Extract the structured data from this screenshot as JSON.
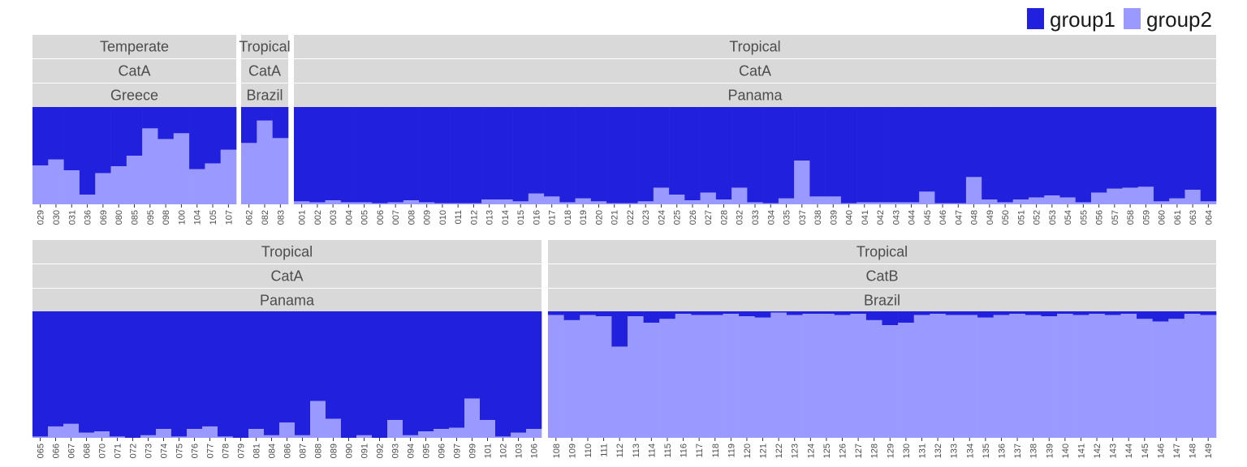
{
  "chart_data": {
    "type": "bar",
    "stacked": "proportional",
    "colors": {
      "group1": "#2121DD",
      "group2": "#9999FF",
      "strip_bg": "#D9D9D9"
    },
    "legend": {
      "position": "top-right",
      "entries": [
        "group1",
        "group2"
      ]
    },
    "ylim": [
      0,
      1
    ],
    "facets": [
      {
        "strips": [
          "Temperate",
          "CatA",
          "Greece"
        ],
        "categories": [
          "029",
          "030",
          "031",
          "036",
          "069",
          "080",
          "085",
          "095",
          "098",
          "100",
          "104",
          "105",
          "107"
        ],
        "series": [
          {
            "name": "group2",
            "values": [
              0.4,
              0.46,
              0.35,
              0.1,
              0.32,
              0.39,
              0.5,
              0.78,
              0.67,
              0.73,
              0.36,
              0.42,
              0.56
            ]
          }
        ]
      },
      {
        "strips": [
          "Tropical",
          "CatA",
          "Brazil"
        ],
        "categories": [
          "062",
          "082",
          "083"
        ],
        "series": [
          {
            "name": "group2",
            "values": [
              0.63,
              0.86,
              0.68
            ]
          }
        ]
      },
      {
        "strips": [
          "Tropical",
          "CatA",
          "Panama"
        ],
        "categories": [
          "001",
          "002",
          "003",
          "004",
          "005",
          "006",
          "007",
          "008",
          "009",
          "010",
          "011",
          "012",
          "013",
          "014",
          "015",
          "016",
          "017",
          "018",
          "019",
          "020",
          "021",
          "022",
          "023",
          "024",
          "025",
          "026",
          "027",
          "028",
          "032",
          "033",
          "034",
          "035",
          "037",
          "038",
          "039",
          "040",
          "041",
          "042",
          "043",
          "044",
          "045",
          "046",
          "047",
          "048",
          "049",
          "050",
          "051",
          "052",
          "053",
          "054",
          "055",
          "056",
          "057",
          "058",
          "059",
          "060",
          "061",
          "063",
          "064"
        ],
        "series": [
          {
            "name": "group2",
            "values": [
              0.03,
              0.02,
              0.04,
              0.02,
              0.02,
              0.01,
              0.02,
              0.04,
              0.02,
              0.01,
              0.01,
              0.01,
              0.05,
              0.05,
              0.03,
              0.11,
              0.08,
              0.02,
              0.06,
              0.03,
              0.01,
              0.01,
              0.03,
              0.17,
              0.1,
              0.04,
              0.12,
              0.05,
              0.17,
              0.02,
              0.01,
              0.06,
              0.45,
              0.08,
              0.08,
              0.01,
              0.02,
              0.02,
              0.02,
              0.02,
              0.13,
              0.01,
              0.01,
              0.28,
              0.05,
              0.02,
              0.05,
              0.07,
              0.09,
              0.07,
              0.02,
              0.12,
              0.16,
              0.17,
              0.18,
              0.03,
              0.06,
              0.15,
              0.03
            ]
          }
        ]
      },
      {
        "strips": [
          "Tropical",
          "CatA",
          "Panama"
        ],
        "categories": [
          "065",
          "066",
          "067",
          "068",
          "070",
          "071",
          "072",
          "073",
          "074",
          "075",
          "076",
          "077",
          "078",
          "079",
          "081",
          "084",
          "086",
          "087",
          "088",
          "089",
          "090",
          "091",
          "092",
          "093",
          "094",
          "095",
          "096",
          "097",
          "099",
          "101",
          "102",
          "103",
          "106"
        ],
        "series": [
          {
            "name": "group2",
            "values": [
              0.01,
              0.09,
              0.11,
              0.04,
              0.05,
              0.01,
              0.0,
              0.02,
              0.07,
              0.01,
              0.07,
              0.09,
              0.01,
              0.0,
              0.07,
              0.02,
              0.12,
              0.02,
              0.29,
              0.15,
              0.0,
              0.02,
              0.0,
              0.14,
              0.02,
              0.05,
              0.07,
              0.08,
              0.31,
              0.14,
              0.01,
              0.04,
              0.07
            ]
          }
        ]
      },
      {
        "strips": [
          "Tropical",
          "CatB",
          "Brazil"
        ],
        "categories": [
          "108",
          "109",
          "110",
          "111",
          "112",
          "113",
          "114",
          "115",
          "116",
          "117",
          "118",
          "119",
          "120",
          "121",
          "122",
          "123",
          "124",
          "125",
          "126",
          "127",
          "128",
          "129",
          "130",
          "131",
          "132",
          "133",
          "134",
          "135",
          "136",
          "137",
          "138",
          "139",
          "140",
          "141",
          "142",
          "143",
          "144",
          "145",
          "146",
          "147",
          "148",
          "149"
        ],
        "series": [
          {
            "name": "group2",
            "values": [
              0.97,
              0.93,
              0.97,
              0.96,
              0.72,
              0.96,
              0.91,
              0.94,
              0.98,
              0.97,
              0.97,
              0.98,
              0.96,
              0.95,
              0.99,
              0.97,
              0.98,
              0.98,
              0.97,
              0.98,
              0.93,
              0.89,
              0.91,
              0.97,
              0.98,
              0.97,
              0.97,
              0.95,
              0.97,
              0.98,
              0.97,
              0.96,
              0.98,
              0.97,
              0.98,
              0.97,
              0.98,
              0.94,
              0.92,
              0.94,
              0.98,
              0.97
            ]
          }
        ]
      }
    ]
  }
}
